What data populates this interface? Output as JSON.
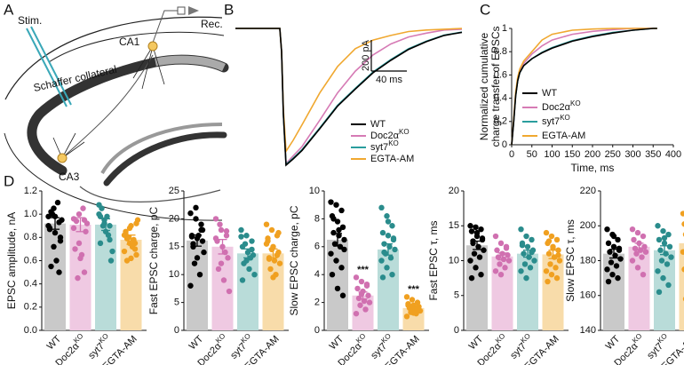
{
  "panel_labels": [
    "A",
    "B",
    "C",
    "D"
  ],
  "schematic": {
    "stim": "Stim.",
    "rec": "Rec.",
    "ca1": "CA1",
    "schaffer": "Schaffer collateral",
    "ca3": "CA3"
  },
  "chart_data": [
    {
      "type": "trace",
      "x": [
        0,
        50,
        52,
        54,
        57,
        65,
        75,
        95,
        115,
        135,
        155,
        175,
        195,
        215,
        235,
        255
      ],
      "xlim": [
        0,
        255
      ],
      "ylim": [
        -900,
        0
      ],
      "scalebar": {
        "x": {
          "value": 40,
          "label": "40 ms"
        },
        "y": {
          "value": 200,
          "label": "200 pA"
        }
      },
      "series": [
        {
          "name": "WT",
          "color": "#000000",
          "values": [
            0,
            0,
            -150,
            -550,
            -880,
            -840,
            -785,
            -645,
            -500,
            -390,
            -285,
            -205,
            -135,
            -85,
            -45,
            -25
          ]
        },
        {
          "name": "Doc2α",
          "name_superscript": "KO",
          "color": "#d67bb5",
          "values": [
            0,
            0,
            -150,
            -550,
            -870,
            -820,
            -760,
            -590,
            -415,
            -275,
            -170,
            -100,
            -55,
            -30,
            -10,
            -5
          ]
        },
        {
          "name": "syt7",
          "name_superscript": "KO",
          "color": "#2a9d9d",
          "values": [
            0,
            0,
            -150,
            -550,
            -875,
            -835,
            -780,
            -640,
            -495,
            -385,
            -280,
            -200,
            -130,
            -82,
            -43,
            -24
          ]
        },
        {
          "name": "EGTA-AM",
          "color": "#f0a830",
          "values": [
            0,
            0,
            -150,
            -520,
            -790,
            -720,
            -620,
            -415,
            -245,
            -130,
            -75,
            -45,
            -20,
            -10,
            -5,
            0
          ]
        }
      ]
    },
    {
      "type": "line",
      "xlabel": "Time, ms",
      "ylabel": [
        "Normalized cumulative",
        "charge transfer of EPSCs"
      ],
      "x": [
        0,
        5,
        10,
        15,
        20,
        30,
        40,
        50,
        75,
        100,
        150,
        200,
        250,
        300,
        350,
        360
      ],
      "xlim": [
        0,
        400
      ],
      "xticks": [
        0,
        50,
        100,
        150,
        200,
        250,
        300,
        350,
        400
      ],
      "ylim": [
        0,
        1
      ],
      "yticks": [
        0,
        0.2,
        0.4,
        0.6,
        0.8,
        1
      ],
      "series": [
        {
          "name": "WT",
          "color": "#000000",
          "values": [
            0,
            0.2,
            0.42,
            0.55,
            0.62,
            0.68,
            0.71,
            0.74,
            0.79,
            0.83,
            0.89,
            0.93,
            0.96,
            0.985,
            1,
            1
          ]
        },
        {
          "name": "Doc2α",
          "name_superscript": "KO",
          "color": "#d67bb5",
          "values": [
            0,
            0.2,
            0.43,
            0.56,
            0.63,
            0.7,
            0.74,
            0.78,
            0.85,
            0.9,
            0.95,
            0.975,
            0.99,
            1,
            1,
            1
          ]
        },
        {
          "name": "syt7",
          "name_superscript": "KO",
          "color": "#2a9d9d",
          "values": [
            0,
            0.2,
            0.42,
            0.55,
            0.62,
            0.68,
            0.71,
            0.74,
            0.795,
            0.835,
            0.895,
            0.935,
            0.965,
            0.985,
            1,
            1
          ]
        },
        {
          "name": "EGTA-AM",
          "color": "#f0a830",
          "values": [
            0,
            0.22,
            0.45,
            0.58,
            0.65,
            0.72,
            0.76,
            0.8,
            0.9,
            0.95,
            0.985,
            0.995,
            1,
            1,
            1,
            1
          ]
        }
      ]
    },
    {
      "type": "bar",
      "ylabel": "EPSC amplitude, nA",
      "categories": [
        "WT",
        "Doc2α",
        "syt7",
        "EGTA-AM"
      ],
      "category_superscripts": [
        null,
        "KO",
        "KO",
        null
      ],
      "bar_colors": [
        "#c9c9c9",
        "#efc9e2",
        "#b9dcd9",
        "#f8dcaa"
      ],
      "point_colors": [
        "#000000",
        "#d070b0",
        "#2a8c8c",
        "#f0a020"
      ],
      "ylim": [
        0,
        1.2
      ],
      "yticks": [
        {
          "value": 0,
          "label": "0.0"
        },
        0.2,
        0.4,
        0.6,
        0.8,
        {
          "value": 1,
          "label": "1.0"
        },
        1.2
      ],
      "values": [
        0.92,
        0.91,
        0.91,
        0.78
      ],
      "errors": [
        0.05,
        0.06,
        0.05,
        0.04
      ],
      "points": [
        [
          0.98,
          1.05,
          0.93,
          0.87,
          0.84,
          0.77,
          0.55,
          0.6,
          0.95,
          1.0,
          1.1,
          0.9,
          0.72,
          0.5,
          0.88,
          0.98,
          0.8,
          1.02
        ],
        [
          0.96,
          1.0,
          0.95,
          0.7,
          0.62,
          0.85,
          0.94,
          0.65,
          0.92,
          0.45,
          1.05,
          0.88,
          0.75,
          0.5
        ],
        [
          1.0,
          0.95,
          0.9,
          0.75,
          0.85,
          0.6,
          1.05,
          0.98,
          0.68,
          0.9,
          0.82,
          1.08,
          0.92,
          0.78,
          0.98
        ],
        [
          0.82,
          0.75,
          0.7,
          0.85,
          0.9,
          0.65,
          0.6,
          0.72,
          0.95,
          0.8,
          0.78,
          0.68,
          0.88,
          0.75,
          0.83,
          0.62,
          0.92,
          0.79
        ]
      ]
    },
    {
      "type": "bar",
      "ylabel": "Fast EPSC charge, pC",
      "categories": [
        "WT",
        "Doc2α",
        "syt7",
        "EGTA-AM"
      ],
      "category_superscripts": [
        null,
        "KO",
        "KO",
        null
      ],
      "bar_colors": [
        "#c9c9c9",
        "#efc9e2",
        "#b9dcd9",
        "#f8dcaa"
      ],
      "point_colors": [
        "#000000",
        "#d070b0",
        "#2a8c8c",
        "#f0a020"
      ],
      "ylim": [
        0,
        25
      ],
      "yticks": [
        0,
        5,
        10,
        15,
        20,
        25
      ],
      "values": [
        16.1,
        15.0,
        13.8,
        13.8
      ],
      "errors": [
        1.0,
        1.3,
        0.8,
        0.8
      ],
      "points": [
        [
          21,
          20,
          18,
          17,
          16.5,
          16,
          15.5,
          17,
          14,
          12,
          10,
          8,
          22,
          19,
          16.8,
          13,
          18,
          15
        ],
        [
          20,
          18,
          17,
          16,
          15,
          13,
          11,
          9,
          7,
          19,
          14,
          16.5,
          12,
          17.8
        ],
        [
          18,
          17,
          16,
          15,
          14,
          13.5,
          12,
          11,
          10,
          15.5,
          13,
          16.8,
          12.5,
          14.5,
          9
        ],
        [
          19,
          18,
          17,
          16,
          15,
          14,
          13,
          12.5,
          12,
          11,
          10,
          15.5,
          14.5,
          13.5,
          16.5,
          9.5,
          17.5,
          12.8
        ]
      ]
    },
    {
      "type": "bar",
      "ylabel": "Slow EPSC charge, pC",
      "categories": [
        "WT",
        "Doc2α",
        "syt7",
        "EGTA-AM"
      ],
      "category_superscripts": [
        null,
        "KO",
        "KO",
        null
      ],
      "bar_colors": [
        "#c9c9c9",
        "#efc9e2",
        "#b9dcd9",
        "#f8dcaa"
      ],
      "point_colors": [
        "#000000",
        "#d070b0",
        "#2a8c8c",
        "#f0a020"
      ],
      "ylim": [
        0,
        10
      ],
      "yticks": [
        0,
        2,
        4,
        6,
        8,
        10
      ],
      "values": [
        6.5,
        2.5,
        5.8,
        1.6
      ],
      "errors": [
        0.45,
        0.25,
        0.4,
        0.15
      ],
      "annotations": [
        null,
        "***",
        null,
        "***"
      ],
      "points": [
        [
          9.2,
          9.0,
          8.6,
          8.2,
          7.8,
          7.4,
          7.0,
          6.8,
          6.5,
          6.2,
          6.0,
          5.5,
          5.0,
          4.5,
          4.0,
          3.0,
          2.5,
          8.0,
          7.2,
          5.8
        ],
        [
          3.8,
          3.5,
          3.2,
          3.0,
          2.8,
          2.5,
          2.3,
          2.1,
          2.0,
          1.8,
          1.5,
          1.2,
          2.6,
          3.3
        ],
        [
          8.8,
          8.2,
          7.5,
          7.0,
          6.8,
          6.5,
          6.2,
          6.0,
          5.8,
          5.5,
          5.2,
          5.0,
          4.5,
          4.0,
          3.8,
          7.8,
          6.6,
          5.6
        ],
        [
          2.4,
          2.2,
          2.0,
          1.9,
          1.8,
          1.7,
          1.6,
          1.5,
          1.4,
          1.3,
          1.2,
          1.0,
          1.7,
          1.55,
          1.8,
          1.25
        ]
      ]
    },
    {
      "type": "bar",
      "ylabel": "Fast EPSC τ, ms",
      "categories": [
        "WT",
        "Doc2α",
        "syt7",
        "EGTA-AM"
      ],
      "category_superscripts": [
        null,
        "KO",
        "KO",
        null
      ],
      "bar_colors": [
        "#c9c9c9",
        "#efc9e2",
        "#b9dcd9",
        "#f8dcaa"
      ],
      "point_colors": [
        "#000000",
        "#d070b0",
        "#2a8c8c",
        "#f0a020"
      ],
      "ylim": [
        0,
        20
      ],
      "yticks": [
        0,
        5,
        10,
        15,
        20
      ],
      "values": [
        12.2,
        10.6,
        11.0,
        10.9
      ],
      "errors": [
        0.6,
        0.5,
        0.5,
        0.6
      ],
      "points": [
        [
          15,
          14.8,
          14.5,
          14.2,
          13.5,
          13,
          12.5,
          12,
          11.5,
          11,
          10.5,
          10,
          9,
          8,
          7.5,
          14,
          13.2,
          12.8
        ],
        [
          13.5,
          12.5,
          12,
          11.5,
          11,
          10.8,
          10.5,
          10.2,
          10,
          9.5,
          9,
          8.5,
          8,
          11.8
        ],
        [
          14.5,
          13.5,
          13,
          12.5,
          12,
          11.5,
          11,
          10.5,
          10,
          9.5,
          9,
          8.5,
          7.5,
          11.2,
          12.2
        ],
        [
          14,
          13.5,
          13,
          12.5,
          12,
          11.5,
          11,
          10.5,
          10,
          9.5,
          9,
          8.5,
          8,
          7.5,
          7,
          11.8,
          10.8,
          12.8
        ]
      ]
    },
    {
      "type": "bar",
      "ylabel": "Slow EPSC τ, ms",
      "categories": [
        "WT",
        "Doc2α",
        "syt7",
        "EGTA-AM"
      ],
      "category_superscripts": [
        null,
        "KO",
        "KO",
        null
      ],
      "bar_colors": [
        "#c9c9c9",
        "#efc9e2",
        "#b9dcd9",
        "#f8dcaa"
      ],
      "point_colors": [
        "#000000",
        "#d070b0",
        "#2a8c8c",
        "#f0a020"
      ],
      "ylim": [
        140,
        220
      ],
      "yticks": [
        140,
        160,
        180,
        200,
        220
      ],
      "values": [
        184,
        188,
        186,
        190
      ],
      "errors": [
        2.5,
        2,
        2.5,
        4
      ],
      "points": [
        [
          198,
          195,
          192,
          190,
          188,
          186,
          185,
          183,
          181,
          179,
          177,
          175,
          172,
          170,
          168,
          194,
          187
        ],
        [
          198,
          196,
          194,
          192,
          190,
          188,
          187,
          186,
          185,
          184,
          182,
          180,
          176,
          172
        ],
        [
          200,
          197,
          195,
          192,
          190,
          188,
          186,
          184,
          182,
          180,
          178,
          174,
          170,
          166,
          162,
          193
        ],
        [
          207,
          205,
          203,
          201,
          199,
          197,
          195,
          193,
          191,
          189,
          187,
          185,
          182,
          178,
          175,
          172,
          168,
          158,
          200,
          194
        ]
      ]
    }
  ]
}
